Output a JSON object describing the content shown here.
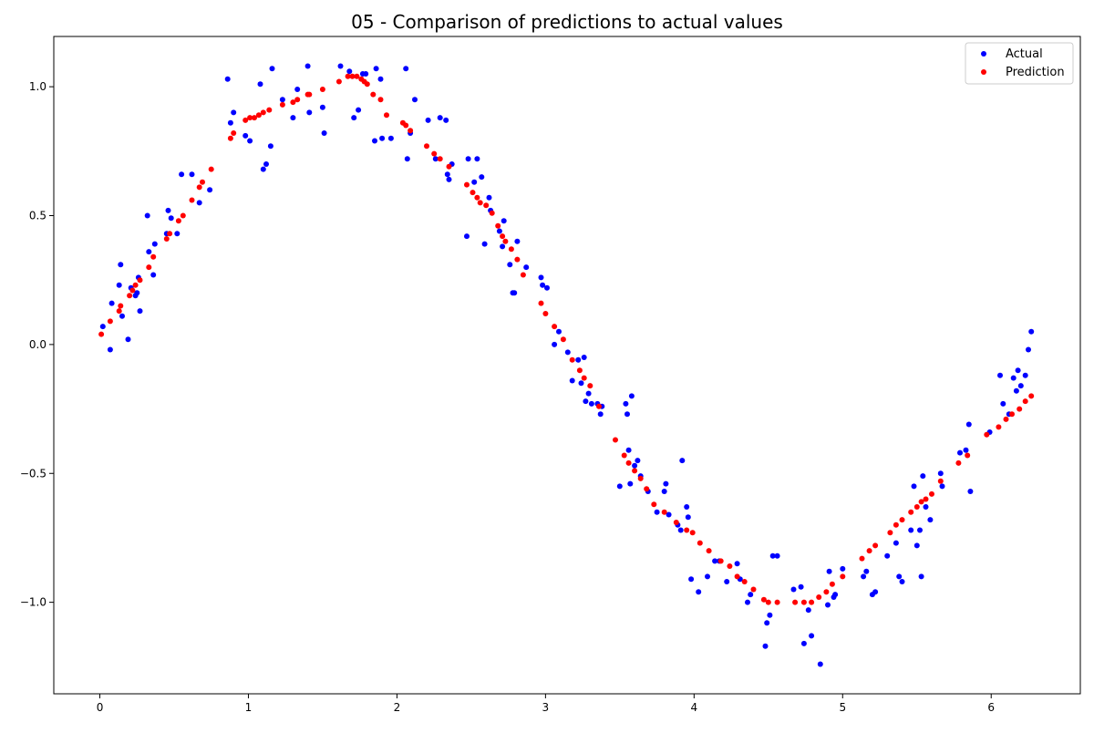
{
  "chart_data": {
    "type": "scatter",
    "title": "05 - Comparison of predictions to actual values",
    "xlabel": "",
    "ylabel": "",
    "xlim": [
      -0.31,
      6.6
    ],
    "ylim": [
      -1.355,
      1.195
    ],
    "xticks": [
      0,
      1,
      2,
      3,
      4,
      5,
      6
    ],
    "yticks": [
      -1.0,
      -0.5,
      0.0,
      0.5,
      1.0
    ],
    "xtick_labels": [
      "0",
      "1",
      "2",
      "3",
      "4",
      "5",
      "6"
    ],
    "ytick_labels": [
      "−1.0",
      "−0.5",
      "0.0",
      "0.5",
      "1.0"
    ],
    "grid": false,
    "legend_position": "top-right",
    "series": [
      {
        "name": "Actual",
        "color": "#0000ff",
        "x": [
          0.02,
          0.07,
          0.08,
          0.13,
          0.14,
          0.15,
          0.19,
          0.21,
          0.24,
          0.25,
          0.26,
          0.27,
          0.32,
          0.33,
          0.36,
          0.37,
          0.45,
          0.46,
          0.48,
          0.52,
          0.55,
          0.62,
          0.67,
          0.74,
          0.86,
          0.88,
          0.9,
          0.98,
          1.01,
          1.08,
          1.1,
          1.12,
          1.15,
          1.16,
          1.23,
          1.3,
          1.33,
          1.4,
          1.41,
          1.5,
          1.51,
          1.62,
          1.68,
          1.71,
          1.74,
          1.77,
          1.79,
          1.85,
          1.86,
          1.89,
          1.9,
          1.96,
          2.06,
          2.07,
          2.09,
          2.12,
          2.21,
          2.26,
          2.29,
          2.33,
          2.34,
          2.35,
          2.37,
          2.47,
          2.48,
          2.52,
          2.54,
          2.57,
          2.59,
          2.62,
          2.63,
          2.69,
          2.71,
          2.72,
          2.76,
          2.78,
          2.79,
          2.81,
          2.87,
          2.97,
          2.98,
          3.01,
          3.06,
          3.09,
          3.15,
          3.18,
          3.22,
          3.24,
          3.26,
          3.27,
          3.29,
          3.31,
          3.35,
          3.37,
          3.38,
          3.5,
          3.54,
          3.55,
          3.56,
          3.57,
          3.58,
          3.6,
          3.62,
          3.64,
          3.69,
          3.75,
          3.8,
          3.81,
          3.83,
          3.89,
          3.91,
          3.92,
          3.95,
          3.96,
          3.98,
          4.03,
          4.09,
          4.14,
          4.17,
          4.22,
          4.29,
          4.31,
          4.36,
          4.38,
          4.48,
          4.49,
          4.51,
          4.53,
          4.56,
          4.67,
          4.72,
          4.74,
          4.77,
          4.79,
          4.85,
          4.9,
          4.91,
          4.94,
          4.95,
          5.0,
          5.14,
          5.16,
          5.2,
          5.22,
          5.3,
          5.36,
          5.38,
          5.4,
          5.46,
          5.48,
          5.5,
          5.52,
          5.53,
          5.54,
          5.56,
          5.59,
          5.66,
          5.67,
          5.79,
          5.83,
          5.85,
          5.86,
          5.99,
          6.06,
          6.08,
          6.12,
          6.15,
          6.17,
          6.18,
          6.2,
          6.23,
          6.25,
          6.27
        ],
        "y": [
          0.07,
          -0.02,
          0.16,
          0.23,
          0.31,
          0.11,
          0.02,
          0.22,
          0.19,
          0.2,
          0.26,
          0.13,
          0.5,
          0.36,
          0.27,
          0.39,
          0.43,
          0.52,
          0.49,
          0.43,
          0.66,
          0.66,
          0.55,
          0.6,
          1.03,
          0.86,
          0.9,
          0.81,
          0.79,
          1.01,
          0.68,
          0.7,
          0.77,
          1.07,
          0.95,
          0.88,
          0.99,
          1.08,
          0.9,
          0.92,
          0.82,
          1.08,
          1.06,
          0.88,
          0.91,
          1.05,
          1.05,
          0.79,
          1.07,
          1.03,
          0.8,
          0.8,
          1.07,
          0.72,
          0.82,
          0.95,
          0.87,
          0.72,
          0.88,
          0.87,
          0.66,
          0.64,
          0.7,
          0.42,
          0.72,
          0.63,
          0.72,
          0.65,
          0.39,
          0.57,
          0.52,
          0.44,
          0.38,
          0.48,
          0.31,
          0.2,
          0.2,
          0.4,
          0.3,
          0.26,
          0.23,
          0.22,
          0.0,
          0.05,
          -0.03,
          -0.14,
          -0.06,
          -0.15,
          -0.05,
          -0.22,
          -0.19,
          -0.23,
          -0.23,
          -0.27,
          -0.24,
          -0.55,
          -0.23,
          -0.27,
          -0.41,
          -0.54,
          -0.2,
          -0.47,
          -0.45,
          -0.51,
          -0.57,
          -0.65,
          -0.57,
          -0.54,
          -0.66,
          -0.7,
          -0.72,
          -0.45,
          -0.63,
          -0.67,
          -0.91,
          -0.96,
          -0.9,
          -0.84,
          -0.84,
          -0.92,
          -0.85,
          -0.91,
          -1.0,
          -0.97,
          -1.17,
          -1.08,
          -1.05,
          -0.82,
          -0.82,
          -0.95,
          -0.94,
          -1.16,
          -1.03,
          -1.13,
          -1.24,
          -1.01,
          -0.88,
          -0.98,
          -0.97,
          -0.87,
          -0.9,
          -0.88,
          -0.97,
          -0.96,
          -0.82,
          -0.77,
          -0.9,
          -0.92,
          -0.72,
          -0.55,
          -0.78,
          -0.72,
          -0.9,
          -0.51,
          -0.63,
          -0.68,
          -0.5,
          -0.55,
          -0.42,
          -0.41,
          -0.31,
          -0.57,
          -0.34,
          -0.12,
          -0.23,
          -0.27,
          -0.13,
          -0.18,
          -0.1,
          -0.16,
          -0.12,
          -0.02,
          0.05
        ]
      },
      {
        "name": "Prediction",
        "color": "#ff0000",
        "x": [
          0.01,
          0.07,
          0.13,
          0.14,
          0.2,
          0.22,
          0.24,
          0.27,
          0.33,
          0.36,
          0.45,
          0.47,
          0.53,
          0.56,
          0.62,
          0.67,
          0.69,
          0.75,
          0.88,
          0.9,
          0.98,
          1.01,
          1.04,
          1.07,
          1.1,
          1.14,
          1.23,
          1.3,
          1.33,
          1.4,
          1.41,
          1.5,
          1.61,
          1.67,
          1.7,
          1.73,
          1.76,
          1.78,
          1.8,
          1.84,
          1.89,
          1.93,
          2.04,
          2.06,
          2.09,
          2.2,
          2.25,
          2.29,
          2.35,
          2.47,
          2.51,
          2.54,
          2.56,
          2.6,
          2.64,
          2.68,
          2.71,
          2.73,
          2.77,
          2.81,
          2.85,
          2.97,
          3.0,
          3.06,
          3.12,
          3.18,
          3.23,
          3.26,
          3.3,
          3.36,
          3.47,
          3.53,
          3.56,
          3.6,
          3.64,
          3.68,
          3.73,
          3.8,
          3.88,
          3.95,
          3.99,
          4.04,
          4.1,
          4.18,
          4.24,
          4.29,
          4.34,
          4.4,
          4.47,
          4.5,
          4.56,
          4.68,
          4.74,
          4.79,
          4.84,
          4.89,
          4.93,
          5.0,
          5.13,
          5.18,
          5.22,
          5.32,
          5.36,
          5.4,
          5.46,
          5.5,
          5.53,
          5.56,
          5.6,
          5.66,
          5.78,
          5.84,
          5.97,
          6.05,
          6.1,
          6.14,
          6.19,
          6.23,
          6.27
        ],
        "y": [
          0.04,
          0.09,
          0.13,
          0.15,
          0.19,
          0.21,
          0.23,
          0.25,
          0.3,
          0.34,
          0.41,
          0.43,
          0.48,
          0.5,
          0.56,
          0.61,
          0.63,
          0.68,
          0.8,
          0.82,
          0.87,
          0.88,
          0.88,
          0.89,
          0.9,
          0.91,
          0.93,
          0.94,
          0.95,
          0.97,
          0.97,
          0.99,
          1.02,
          1.04,
          1.04,
          1.04,
          1.03,
          1.02,
          1.01,
          0.97,
          0.95,
          0.89,
          0.86,
          0.85,
          0.83,
          0.77,
          0.74,
          0.72,
          0.69,
          0.62,
          0.59,
          0.57,
          0.55,
          0.54,
          0.51,
          0.46,
          0.42,
          0.4,
          0.37,
          0.33,
          0.27,
          0.16,
          0.12,
          0.07,
          0.02,
          -0.06,
          -0.1,
          -0.13,
          -0.16,
          -0.24,
          -0.37,
          -0.43,
          -0.46,
          -0.49,
          -0.52,
          -0.56,
          -0.62,
          -0.65,
          -0.69,
          -0.72,
          -0.73,
          -0.77,
          -0.8,
          -0.84,
          -0.86,
          -0.9,
          -0.92,
          -0.95,
          -0.99,
          -1.0,
          -1.0,
          -1.0,
          -1.0,
          -1.0,
          -0.98,
          -0.96,
          -0.93,
          -0.9,
          -0.83,
          -0.8,
          -0.78,
          -0.73,
          -0.7,
          -0.68,
          -0.65,
          -0.63,
          -0.61,
          -0.6,
          -0.58,
          -0.53,
          -0.46,
          -0.43,
          -0.35,
          -0.32,
          -0.29,
          -0.27,
          -0.25,
          -0.22,
          -0.2
        ]
      }
    ]
  }
}
